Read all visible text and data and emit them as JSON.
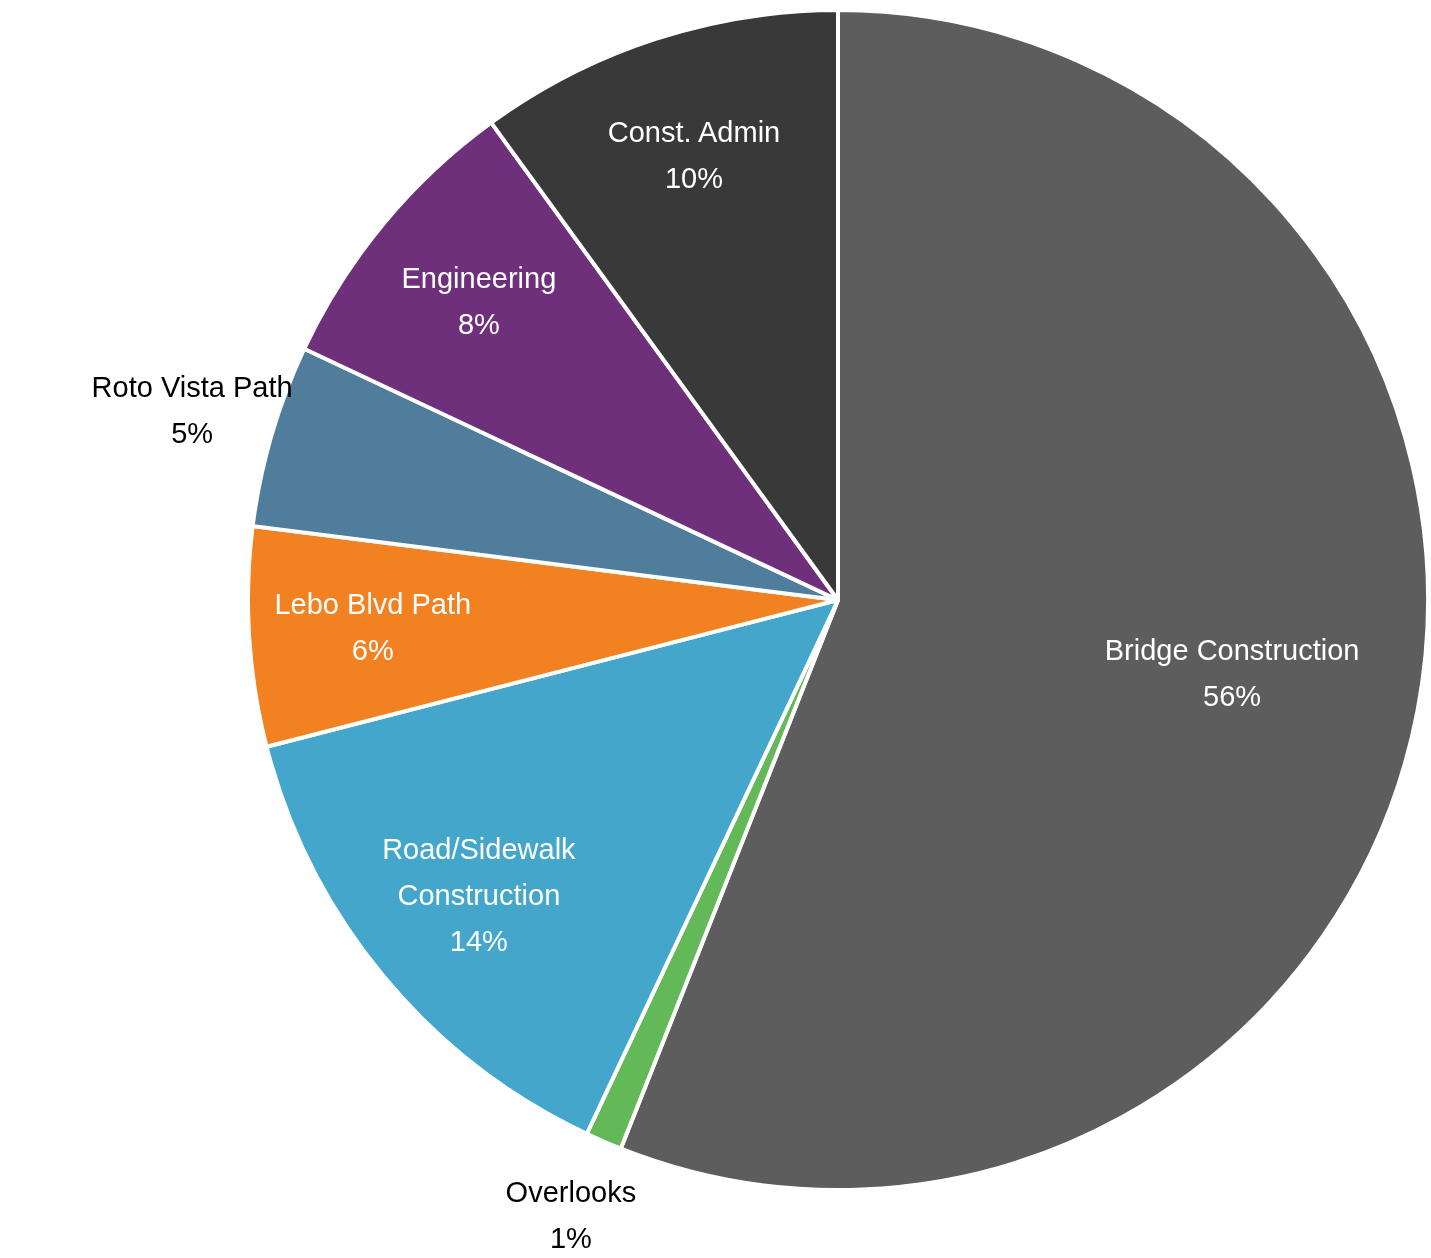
{
  "chart_data": {
    "type": "pie",
    "categories": [
      "Bridge Construction",
      "Overlooks",
      "Road/Sidewalk Construction",
      "Lebo Blvd Path",
      "Roto Vista Path",
      "Engineering",
      "Const. Admin"
    ],
    "values": [
      56,
      1,
      14,
      6,
      5,
      8,
      10
    ],
    "value_labels": [
      "56%",
      "1%",
      "14%",
      "6%",
      "5%",
      "8%",
      "10%"
    ],
    "colors": [
      "#5d5d5d",
      "#63b957",
      "#44a6ca",
      "#f28122",
      "#517d9c",
      "#6e2f7b",
      "#393939"
    ],
    "legend": false
  }
}
